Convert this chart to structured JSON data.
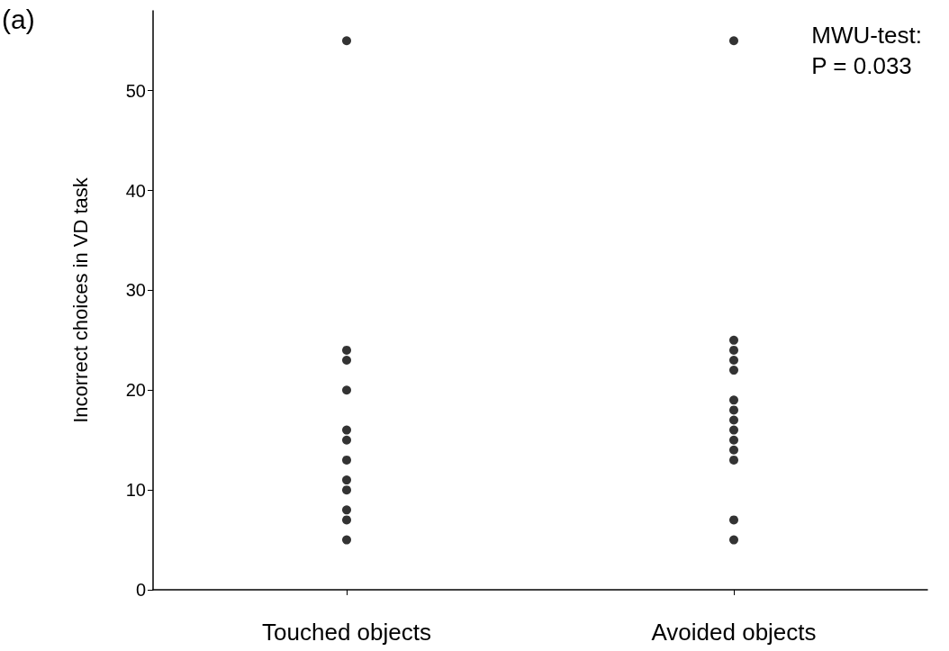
{
  "chart_data": {
    "type": "scatter",
    "xlabel": null,
    "ylabel": "Incorrect choices in VD task",
    "categories": [
      "Touched objects",
      "Avoided objects"
    ],
    "series": [
      {
        "color": "#000000",
        "x": [
          "Touched objects",
          "Touched objects",
          "Touched objects",
          "Touched objects",
          "Touched objects",
          "Touched objects",
          "Touched objects",
          "Touched objects",
          "Touched objects",
          "Touched objects",
          "Touched objects",
          "Touched objects"
        ],
        "values": [
          55,
          24,
          23,
          20,
          16,
          15,
          13,
          11,
          10,
          8,
          7,
          5
        ]
      },
      {
        "color": "#000000",
        "x": [
          "Avoided objects",
          "Avoided objects",
          "Avoided objects",
          "Avoided objects",
          "Avoided objects",
          "Avoided objects",
          "Avoided objects",
          "Avoided objects",
          "Avoided objects",
          "Avoided objects",
          "Avoided objects",
          "Avoided objects",
          "Avoided objects",
          "Avoided objects"
        ],
        "values": [
          55,
          25,
          24,
          23,
          22,
          19,
          18,
          17,
          16,
          15,
          14,
          13,
          7,
          5
        ]
      }
    ],
    "ylim": [
      0,
      58
    ],
    "yticks": [
      0,
      10,
      20,
      30,
      40,
      50
    ],
    "grid": false,
    "marker": "circle",
    "annotations": [
      "(a)",
      "MWU-test:\nP = 0.033"
    ]
  }
}
